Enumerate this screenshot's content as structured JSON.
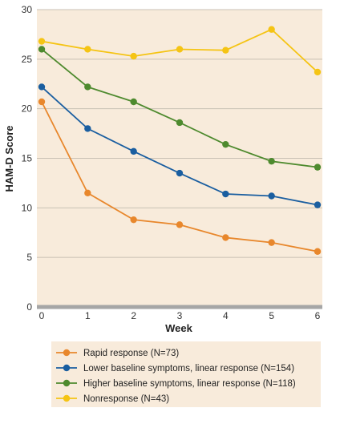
{
  "chart_data": {
    "type": "line",
    "title": "",
    "xlabel": "Week",
    "ylabel": "HAM-D Score",
    "x": [
      0,
      1,
      2,
      3,
      4,
      5,
      6
    ],
    "ylim": [
      0,
      30
    ],
    "yticks": [
      0,
      5,
      10,
      15,
      20,
      25,
      30
    ],
    "grid": true,
    "legend_placement": "bottom",
    "colors": {
      "plot_background": "#f8ebdb",
      "gridline": "#c9c0b4",
      "axis_line": "#a6a6a6",
      "legend_background": "#f8ebdb"
    },
    "series": [
      {
        "name": "Rapid response (N=73)",
        "color": "#e8872c",
        "values": [
          20.7,
          11.5,
          8.8,
          8.3,
          7.0,
          6.5,
          5.6
        ]
      },
      {
        "name": "Lower baseline symptoms, linear response (N=154)",
        "color": "#1a5ea0",
        "values": [
          22.2,
          18.0,
          15.7,
          13.5,
          11.4,
          11.2,
          10.3
        ]
      },
      {
        "name": "Higher baseline symptoms, linear response (N=118)",
        "color": "#4e8a2e",
        "values": [
          26.0,
          22.2,
          20.7,
          18.6,
          16.4,
          14.7,
          14.1
        ]
      },
      {
        "name": "Nonresponse (N=43)",
        "color": "#f5c414",
        "values": [
          26.8,
          26.0,
          25.3,
          26.0,
          25.9,
          28.0,
          23.7
        ]
      }
    ]
  }
}
